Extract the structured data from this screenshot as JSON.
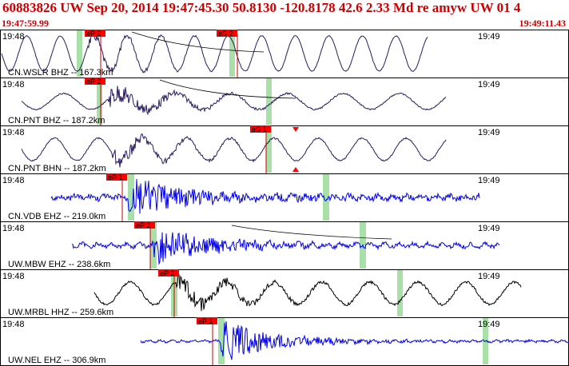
{
  "header": {
    "event_line": "60883826 UW Sep 20, 2014 19:47:45.30   50.8130 -120.8178 42.6 2.33 Md re amyw UW 01   4",
    "start_time": "19:47:59.99",
    "end_time": "19:49:11.43"
  },
  "colors": {
    "accent": "#cc0000",
    "blue_trace": "#0000ee",
    "dark_trace": "#2a1a5e",
    "black_trace": "#000000",
    "pick_window": "#a8e0a8"
  },
  "tick_labels": {
    "left": "19:48",
    "right": "19:49"
  },
  "traces": [
    {
      "label": "CN.WSLR BHZ -- 167.3km",
      "pick": "eP 2",
      "pick2": "eS 2"
    },
    {
      "label": "CN.PNT BHZ -- 187.2km",
      "pick": "eP 2"
    },
    {
      "label": "CN.PNT BHN -- 187.2km",
      "pick": "eS 1"
    },
    {
      "label": "CN.VDB EHZ -- 219.0km",
      "pick": "eP 1"
    },
    {
      "label": "UW.MBW EHZ -- 238.6km",
      "pick": "eP 2"
    },
    {
      "label": "UW.MRBL HHZ -- 259.6km",
      "pick": "eP 2"
    },
    {
      "label": "UW.NEL EHZ -- 306.9km",
      "pick": "eP 1"
    }
  ]
}
